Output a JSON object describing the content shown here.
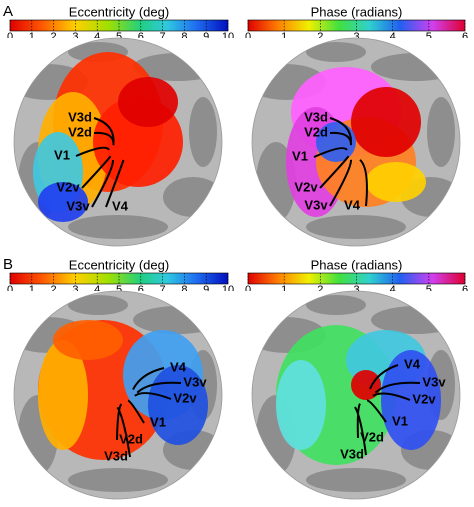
{
  "panels": [
    {
      "label": "A",
      "maps": [
        {
          "title": "Eccentricity (deg)",
          "ticks": [
            0,
            1,
            2,
            3,
            4,
            5,
            6,
            7,
            8,
            9,
            10
          ],
          "areas": [
            "V3d",
            "V2d",
            "V1",
            "V2v",
            "V3v",
            "V4"
          ]
        },
        {
          "title": "Phase (radians)",
          "ticks": [
            0,
            1,
            2,
            3,
            4,
            5,
            6
          ],
          "areas": [
            "V3d",
            "V2d",
            "V1",
            "V2v",
            "V3v",
            "V4"
          ]
        }
      ]
    },
    {
      "label": "B",
      "maps": [
        {
          "title": "Eccentricity (deg)",
          "ticks": [
            0,
            1,
            2,
            3,
            4,
            5,
            6,
            7,
            8,
            9,
            10
          ],
          "areas": [
            "V4",
            "V3v",
            "V2v",
            "V1",
            "V2d",
            "V3d"
          ]
        },
        {
          "title": "Phase (radians)",
          "ticks": [
            0,
            1,
            2,
            3,
            4,
            5,
            6
          ],
          "areas": [
            "V4",
            "V3v",
            "V2v",
            "V1",
            "V2d",
            "V3d"
          ]
        }
      ]
    }
  ]
}
